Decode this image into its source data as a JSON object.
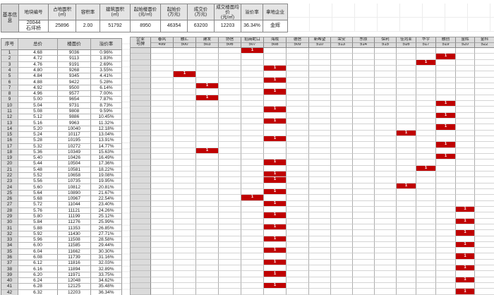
{
  "basic_info": {
    "section_label": "基本信息",
    "fields": [
      {
        "label": "地块编号",
        "unit": "",
        "value": "20044\n石坪桥"
      },
      {
        "label": "占地面积",
        "unit": "(㎡)",
        "value": "25896"
      },
      {
        "label": "容积率",
        "unit": "",
        "value": "2.00"
      },
      {
        "label": "建筑面积",
        "unit": "(㎡)",
        "value": "51792"
      },
      {
        "label": "起始楼面价",
        "unit": "(元/㎡)",
        "value": "8950"
      },
      {
        "label": "起始价",
        "unit": "(万元)",
        "value": "46354"
      },
      {
        "label": "成交价",
        "unit": "(万元)",
        "value": "63200"
      },
      {
        "label": "成交楼面均价",
        "unit": "(元/㎡)",
        "value": "12203"
      },
      {
        "label": "溢价率",
        "unit": "",
        "value": "36.34%"
      },
      {
        "label": "拿地企业",
        "unit": "",
        "value": "金辉"
      }
    ]
  },
  "rounds_table": {
    "headers": [
      "序号",
      "总价",
      "楼面价",
      "溢价率"
    ],
    "rows": [
      [
        "1",
        "4.68",
        "9036",
        "0.96%"
      ],
      [
        "2",
        "4.72",
        "9113",
        "1.83%"
      ],
      [
        "3",
        "4.76",
        "9191",
        "2.69%"
      ],
      [
        "4",
        "4.80",
        "9268",
        "3.55%"
      ],
      [
        "5",
        "4.84",
        "9345",
        "4.41%"
      ],
      [
        "6",
        "4.88",
        "9422",
        "5.28%"
      ],
      [
        "7",
        "4.92",
        "9500",
        "6.14%"
      ],
      [
        "8",
        "4.96",
        "9577",
        "7.00%"
      ],
      [
        "9",
        "5.00",
        "9654",
        "7.87%"
      ],
      [
        "10",
        "5.04",
        "9731",
        "8.73%"
      ],
      [
        "11",
        "5.08",
        "9808",
        "9.59%"
      ],
      [
        "12",
        "5.12",
        "9886",
        "10.45%"
      ],
      [
        "13",
        "5.16",
        "9963",
        "11.32%"
      ],
      [
        "14",
        "5.20",
        "10040",
        "12.18%"
      ],
      [
        "15",
        "5.24",
        "10117",
        "13.04%"
      ],
      [
        "16",
        "5.28",
        "10195",
        "13.91%"
      ],
      [
        "17",
        "5.32",
        "10272",
        "14.77%"
      ],
      [
        "18",
        "5.36",
        "10349",
        "15.63%"
      ],
      [
        "19",
        "5.40",
        "10426",
        "16.49%"
      ],
      [
        "20",
        "5.44",
        "10504",
        "17.36%"
      ],
      [
        "21",
        "5.48",
        "10581",
        "18.22%"
      ],
      [
        "22",
        "5.52",
        "10658",
        "19.08%"
      ],
      [
        "23",
        "5.56",
        "10735",
        "19.95%"
      ],
      [
        "24",
        "5.60",
        "10812",
        "20.81%"
      ],
      [
        "25",
        "5.64",
        "10890",
        "21.67%"
      ],
      [
        "26",
        "5.68",
        "10967",
        "22.54%"
      ],
      [
        "27",
        "5.72",
        "11044",
        "23.40%"
      ],
      [
        "28",
        "5.76",
        "11121",
        "24.26%"
      ],
      [
        "29",
        "5.80",
        "11199",
        "25.12%"
      ],
      [
        "30",
        "5.84",
        "11276",
        "25.99%"
      ],
      [
        "31",
        "5.88",
        "11353",
        "26.85%"
      ],
      [
        "32",
        "5.92",
        "11430",
        "27.71%"
      ],
      [
        "33",
        "5.96",
        "11508",
        "28.58%"
      ],
      [
        "34",
        "6.00",
        "11585",
        "29.44%"
      ],
      [
        "35",
        "6.04",
        "11662",
        "30.30%"
      ],
      [
        "36",
        "6.08",
        "11739",
        "31.16%"
      ],
      [
        "37",
        "6.12",
        "11816",
        "32.03%"
      ],
      [
        "38",
        "6.16",
        "11894",
        "32.89%"
      ],
      [
        "39",
        "6.20",
        "11971",
        "33.75%"
      ],
      [
        "40",
        "6.24",
        "12048",
        "34.62%"
      ],
      [
        "41",
        "6.28",
        "12125",
        "35.48%"
      ],
      [
        "42",
        "6.32",
        "12203",
        "36.34%"
      ]
    ]
  },
  "bids_table": {
    "corner_label_top": "企业",
    "corner_label_bottom": "号牌",
    "companies": [
      {
        "name": "春风",
        "plate": "499"
      },
      {
        "name": "融汇",
        "plate": "500"
      },
      {
        "name": "建发",
        "plate": "503"
      },
      {
        "name": "协信",
        "plate": "506"
      },
      {
        "name": "招商蛇口",
        "plate": "507"
      },
      {
        "name": "海成",
        "plate": "508"
      },
      {
        "name": "德信",
        "plate": "509"
      },
      {
        "name": "新希望",
        "plate": "510"
      },
      {
        "name": "荣安",
        "plate": "513"
      },
      {
        "name": "东原",
        "plate": "514"
      },
      {
        "name": "保利",
        "plate": "515"
      },
      {
        "name": "佳兆业",
        "plate": "516"
      },
      {
        "name": "华宇",
        "plate": "517"
      },
      {
        "name": "融创",
        "plate": "519"
      },
      {
        "name": "金辉",
        "plate": "520"
      },
      {
        "name": "金科",
        "plate": "522"
      }
    ],
    "bid_mark": "1",
    "bids_by_round": [
      "507",
      "519",
      "517",
      "508",
      "500",
      "508",
      "503",
      "508",
      "503",
      "519",
      "508",
      "519",
      "508",
      "519",
      "516",
      "508",
      "519",
      "503",
      "519",
      "508",
      "517",
      "508",
      "508",
      "516",
      "508",
      "507",
      "508",
      "520",
      "508",
      "520",
      "508",
      "520",
      "508",
      "520",
      "508",
      "520",
      "508",
      "520",
      "508",
      "520",
      "508",
      "520"
    ]
  },
  "colors": {
    "bid_fill": "#c00000",
    "header_gray": "#dbdbdb"
  }
}
